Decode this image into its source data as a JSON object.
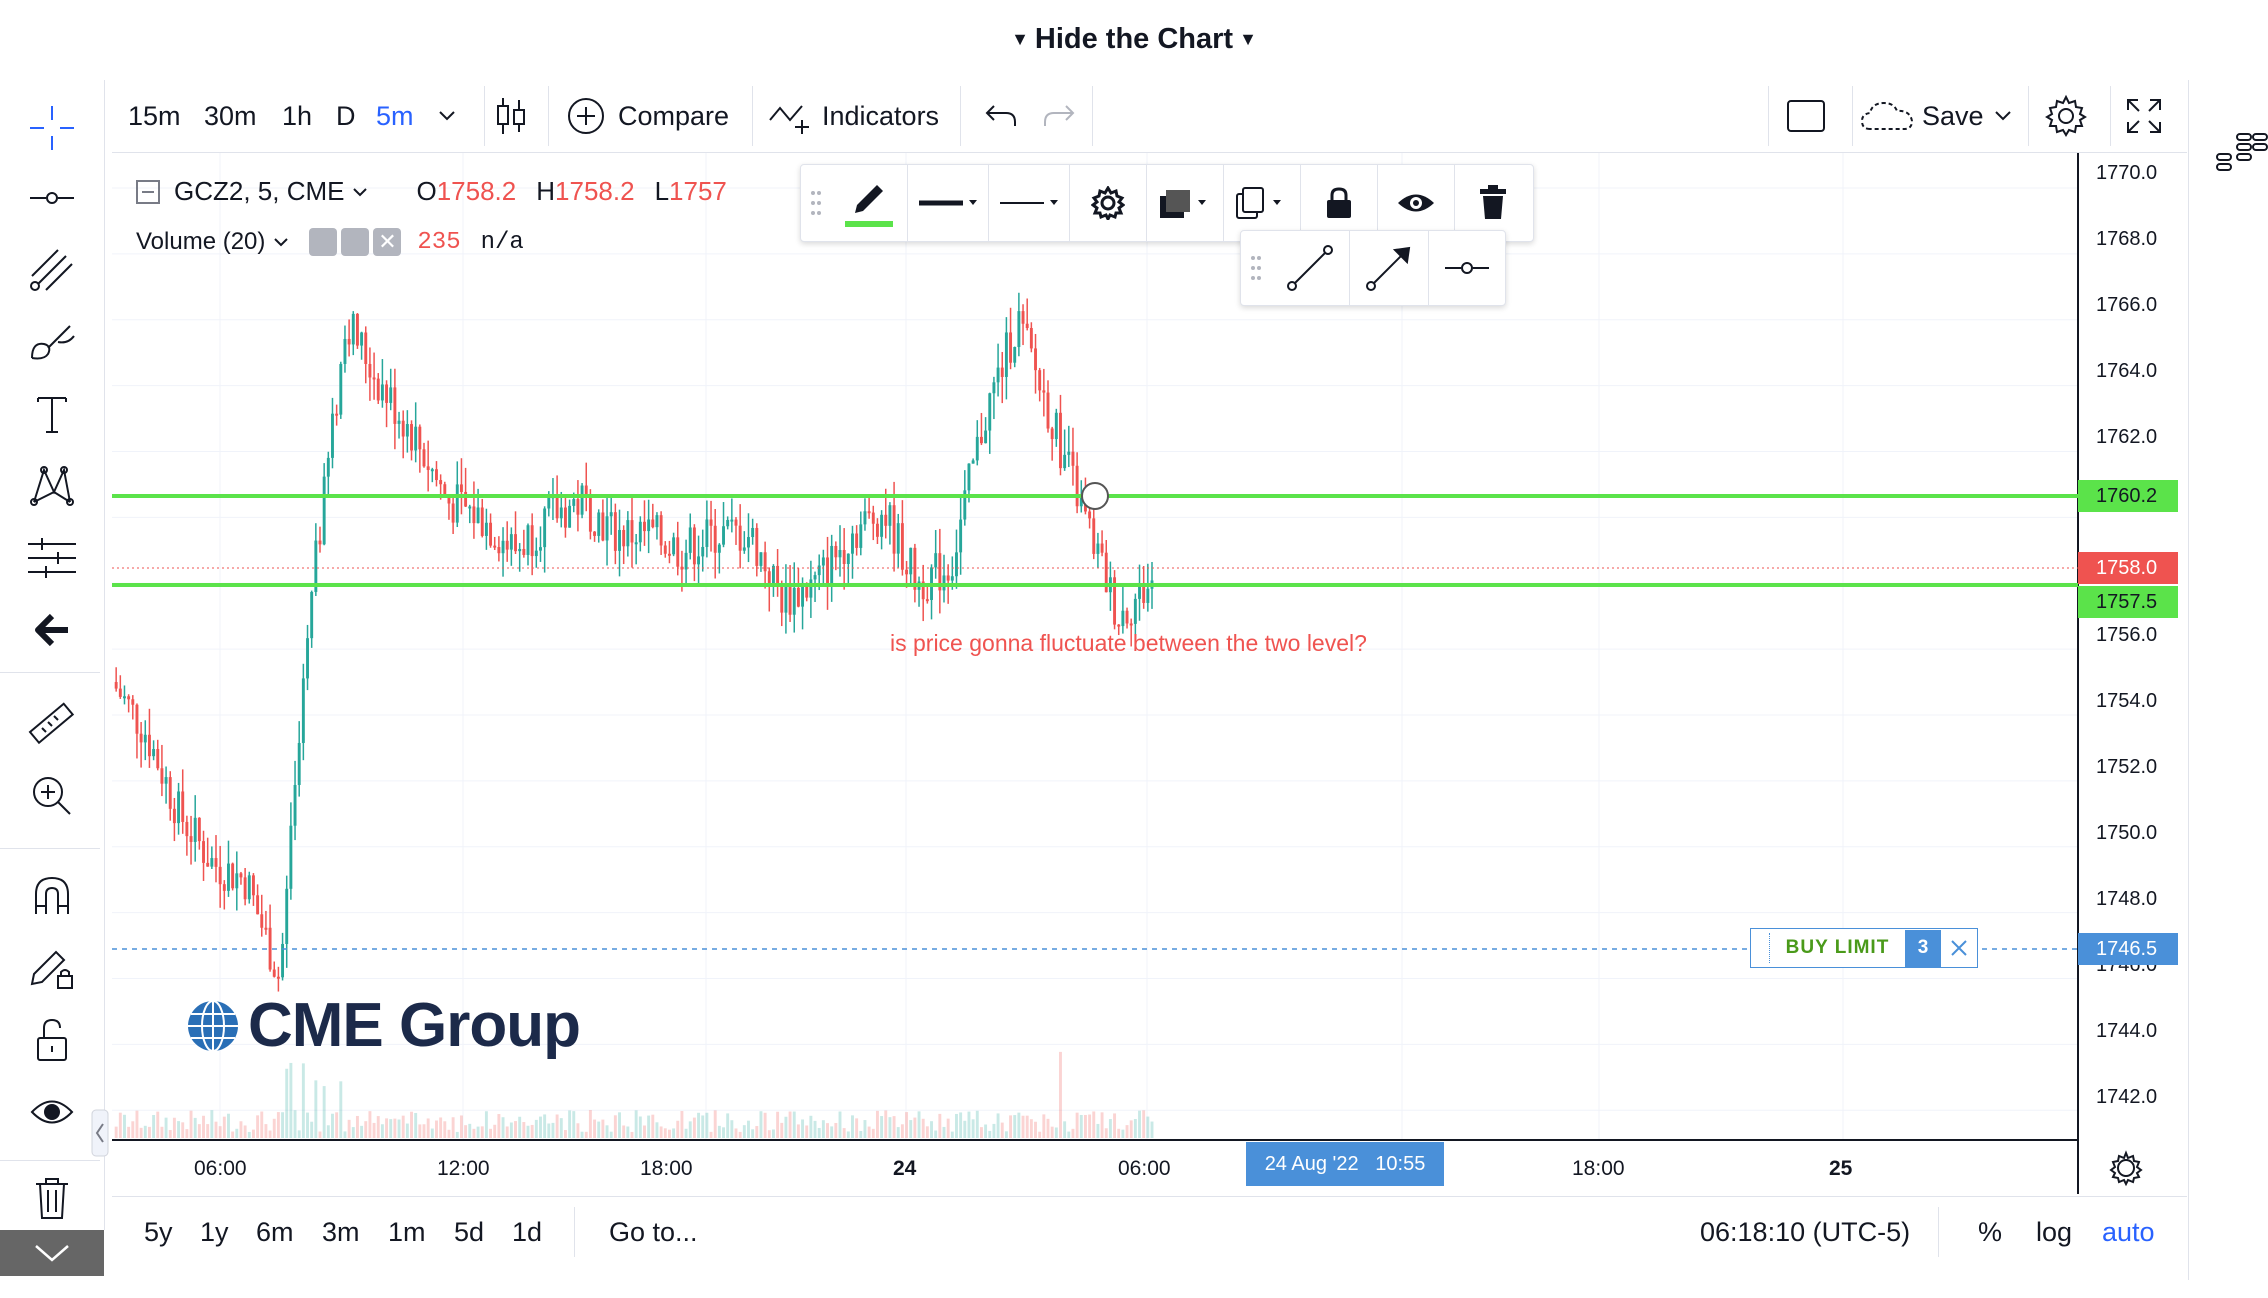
{
  "header": {
    "title": "Hide the Chart"
  },
  "toolbar": {
    "intervals": [
      "15m",
      "30m",
      "1h",
      "D",
      "5m"
    ],
    "active_interval": "5m",
    "compare_label": "Compare",
    "indicators_label": "Indicators",
    "save_label": "Save"
  },
  "legend": {
    "symbol": "GCZ2, 5, CME",
    "open_label": "O",
    "open_value": "1758.2",
    "high_label": "H",
    "high_value": "1758.2",
    "low_label": "L",
    "low_value": "1757",
    "volume_label": "Volume (20)",
    "volume_value": "235",
    "volume_ma": "n/a"
  },
  "price_axis": {
    "ticks": [
      "1770.0",
      "1768.0",
      "1766.0",
      "1764.0",
      "1762.0",
      "1756.0",
      "1754.0",
      "1752.0",
      "1750.0",
      "1748.0",
      "1746.0",
      "1744.0",
      "1742.0"
    ],
    "level_upper": "1760.2",
    "level_last": "1758.0",
    "level_lower": "1757.5",
    "level_order": "1746.5"
  },
  "time_axis": {
    "labels": [
      "06:00",
      "12:00",
      "18:00",
      "24",
      "06:00",
      "18:00",
      "25"
    ],
    "crosshair_label": "24 Aug '22   10:55"
  },
  "annotation": {
    "text": "is price gonna fluctuate between the two level?"
  },
  "order": {
    "type": "BUY LIMIT",
    "quantity": "3"
  },
  "watermark": {
    "text": "CME Group"
  },
  "bottom": {
    "ranges": [
      "5y",
      "1y",
      "6m",
      "3m",
      "1m",
      "5d",
      "1d"
    ],
    "goto_label": "Go to...",
    "clock": "06:18:10 (UTC-5)",
    "percent_label": "%",
    "log_label": "log",
    "auto_label": "auto"
  },
  "colors": {
    "accent": "#2962ff",
    "level_line": "#5be34a",
    "candle_up": "#26a69a",
    "candle_down": "#ef5350",
    "annotation": "#ef5350",
    "order_badge": "#4a90d9"
  },
  "chart_data": {
    "type": "candlestick",
    "symbol": "GCZ2",
    "interval": "5m",
    "ylim": [
      1741,
      1771
    ],
    "x": [
      "23 Aug 03:00",
      "23 Aug 04:00",
      "23 Aug 05:00",
      "23 Aug 06:00",
      "23 Aug 07:00",
      "23 Aug 08:00",
      "23 Aug 08:30",
      "23 Aug 09:00",
      "23 Aug 10:00",
      "23 Aug 11:00",
      "23 Aug 12:00",
      "23 Aug 13:00",
      "23 Aug 14:00",
      "23 Aug 15:00",
      "23 Aug 16:00",
      "23 Aug 17:00",
      "23 Aug 18:00",
      "23 Aug 19:00",
      "23 Aug 20:00",
      "23 Aug 21:00",
      "23 Aug 22:00",
      "23 Aug 23:00",
      "24 Aug 00:00",
      "24 Aug 01:00",
      "24 Aug 02:00",
      "24 Aug 03:00",
      "24 Aug 04:00",
      "24 Aug 04:30",
      "24 Aug 05:00",
      "24 Aug 05:30",
      "24 Aug 06:00",
      "24 Aug 06:15"
    ],
    "close": [
      1755.0,
      1753.5,
      1751.0,
      1749.5,
      1749.0,
      1746.0,
      1758.0,
      1766.0,
      1764.0,
      1762.5,
      1760.5,
      1760.0,
      1759.0,
      1760.0,
      1760.5,
      1759.5,
      1759.5,
      1759.0,
      1759.5,
      1759.5,
      1757.5,
      1758.0,
      1759.5,
      1760.2,
      1758.0,
      1758.5,
      1763.0,
      1766.0,
      1763.0,
      1760.0,
      1757.0,
      1758.0
    ]
  }
}
